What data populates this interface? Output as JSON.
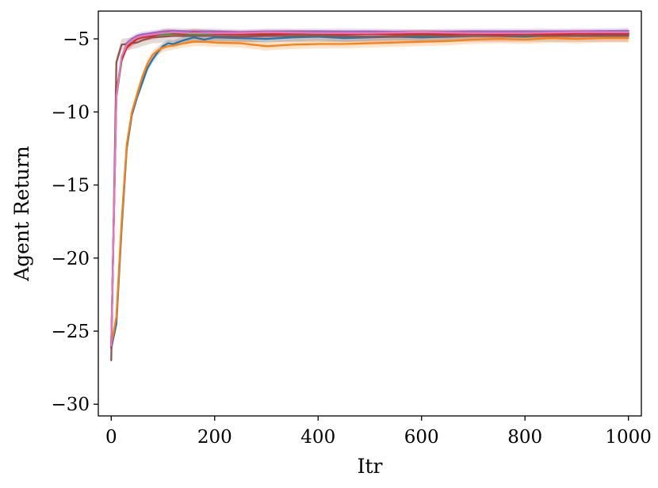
{
  "chart_data": {
    "type": "line",
    "title": "",
    "xlabel": "Itr",
    "ylabel": "Agent Return",
    "xlim": [
      -25,
      1025
    ],
    "ylim": [
      -30.8,
      -3.1
    ],
    "grid": false,
    "x_ticks": [
      0,
      200,
      400,
      600,
      800,
      1000
    ],
    "x_tick_labels": [
      "0",
      "200",
      "400",
      "600",
      "800",
      "1000"
    ],
    "y_ticks": [
      -5,
      -10,
      -15,
      -20,
      -25,
      -30
    ],
    "y_tick_labels": [
      "−5",
      "−10",
      "−15",
      "−20",
      "−25",
      "−30"
    ],
    "series": [
      {
        "color": "#1f77b4",
        "x": [
          0,
          10,
          20,
          30,
          40,
          50,
          60,
          70,
          80,
          90,
          100,
          110,
          120,
          140,
          160,
          180,
          200,
          250,
          300,
          350,
          400,
          450,
          500,
          550,
          600,
          650,
          700,
          750,
          800,
          850,
          900,
          950,
          1000
        ],
        "y": [
          -26.2,
          -24.5,
          -18,
          -12.5,
          -10.2,
          -9.0,
          -8.0,
          -7.0,
          -6.4,
          -5.9,
          -5.5,
          -5.3,
          -5.35,
          -5.1,
          -4.9,
          -5.05,
          -4.9,
          -4.95,
          -5.0,
          -4.9,
          -4.85,
          -4.95,
          -4.9,
          -4.85,
          -4.9,
          -4.85,
          -4.8,
          -4.8,
          -4.85,
          -4.75,
          -4.8,
          -4.75,
          -4.75
        ],
        "band": 0.25
      },
      {
        "color": "#ff7f0e",
        "x": [
          0,
          10,
          20,
          30,
          40,
          50,
          60,
          70,
          80,
          90,
          100,
          110,
          120,
          140,
          160,
          180,
          200,
          250,
          300,
          350,
          400,
          450,
          500,
          550,
          600,
          650,
          700,
          750,
          800,
          850,
          900,
          950,
          1000
        ],
        "y": [
          -26.0,
          -24.0,
          -17.5,
          -12.2,
          -10.0,
          -8.8,
          -7.6,
          -6.7,
          -6.1,
          -5.8,
          -5.6,
          -5.5,
          -5.45,
          -5.3,
          -5.2,
          -5.2,
          -5.25,
          -5.3,
          -5.5,
          -5.4,
          -5.35,
          -5.35,
          -5.3,
          -5.25,
          -5.2,
          -5.15,
          -5.05,
          -5.0,
          -5.05,
          -4.95,
          -5.0,
          -4.95,
          -4.95
        ],
        "band": 0.3
      },
      {
        "color": "#2ca02c",
        "x": [
          0,
          10,
          20,
          30,
          40,
          50,
          60,
          80,
          100,
          120,
          150,
          200,
          250,
          300,
          400,
          500,
          600,
          700,
          800,
          900,
          1000
        ],
        "y": [
          -26.0,
          -9.0,
          -6.5,
          -5.5,
          -5.1,
          -4.9,
          -4.8,
          -4.75,
          -4.7,
          -4.65,
          -4.7,
          -4.65,
          -4.7,
          -4.65,
          -4.7,
          -4.65,
          -4.7,
          -4.65,
          -4.7,
          -4.65,
          -4.6
        ],
        "band": 0.2
      },
      {
        "color": "#9467bd",
        "x": [
          0,
          10,
          20,
          30,
          40,
          50,
          60,
          80,
          100,
          120,
          150,
          200,
          250,
          300,
          400,
          500,
          600,
          700,
          800,
          900,
          1000
        ],
        "y": [
          -26.0,
          -8.8,
          -6.3,
          -5.3,
          -5.0,
          -4.8,
          -4.7,
          -4.6,
          -4.5,
          -4.45,
          -4.5,
          -4.5,
          -4.55,
          -4.5,
          -4.5,
          -4.5,
          -4.55,
          -4.5,
          -4.5,
          -4.5,
          -4.45
        ],
        "band": 0.2
      },
      {
        "color": "#8c564b",
        "x": [
          0,
          10,
          20,
          30,
          40,
          50,
          60,
          80,
          100,
          120,
          150,
          200,
          250,
          300,
          400,
          500,
          600,
          700,
          800,
          900,
          1000
        ],
        "y": [
          -27.0,
          -6.6,
          -5.4,
          -5.35,
          -5.3,
          -5.25,
          -5.1,
          -4.9,
          -4.85,
          -4.8,
          -4.8,
          -4.8,
          -4.85,
          -4.8,
          -4.8,
          -4.85,
          -4.8,
          -4.8,
          -4.8,
          -4.8,
          -4.8
        ],
        "band": 0.4
      },
      {
        "color": "#d62728",
        "x": [
          0,
          10,
          20,
          30,
          40,
          50,
          60,
          70,
          80,
          90,
          100,
          110,
          120,
          140,
          160,
          180,
          200,
          250,
          300,
          350,
          400,
          450,
          500,
          550,
          600,
          650,
          700,
          750,
          800,
          850,
          900,
          950,
          1000
        ],
        "y": [
          -26.1,
          -8.6,
          -6.4,
          -5.6,
          -5.3,
          -5.0,
          -4.9,
          -4.85,
          -4.8,
          -4.7,
          -4.6,
          -4.55,
          -4.6,
          -4.65,
          -4.55,
          -4.6,
          -4.65,
          -4.7,
          -4.7,
          -4.65,
          -4.65,
          -4.7,
          -4.65,
          -4.7,
          -4.65,
          -4.7,
          -4.65,
          -4.7,
          -4.65,
          -4.7,
          -4.65,
          -4.65,
          -4.65
        ],
        "band": 0.25
      },
      {
        "color": "#e377c2",
        "x": [
          0,
          10,
          20,
          30,
          40,
          50,
          60,
          80,
          100,
          120,
          150,
          200,
          250,
          300,
          400,
          500,
          600,
          700,
          800,
          900,
          1000
        ],
        "y": [
          -26.0,
          -8.9,
          -6.2,
          -5.4,
          -5.1,
          -4.9,
          -4.8,
          -4.7,
          -4.6,
          -4.55,
          -4.6,
          -4.6,
          -4.6,
          -4.55,
          -4.6,
          -4.6,
          -4.55,
          -4.6,
          -4.6,
          -4.55,
          -4.55
        ],
        "band": 0.2
      }
    ]
  }
}
